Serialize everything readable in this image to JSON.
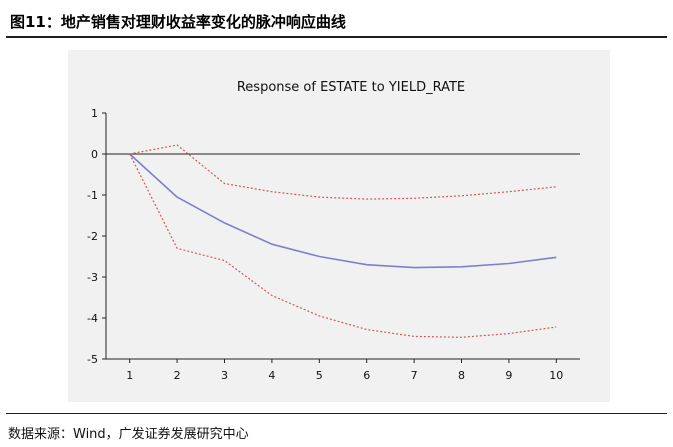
{
  "header": {
    "title": "图11：地产销售对理财收益率变化的脉冲响应曲线"
  },
  "footer": {
    "source": "数据来源：Wind，广发证券发展研究中心"
  },
  "colors": {
    "response_line": "#7f7fcf",
    "confidence_band": "#cf5a5a",
    "zero_line": "#222222",
    "axis": "#222222"
  },
  "chart_data": {
    "type": "line",
    "title": "Response of ESTATE to YIELD_RATE",
    "xlabel": "",
    "ylabel": "",
    "x": [
      1,
      2,
      3,
      4,
      5,
      6,
      7,
      8,
      9,
      10
    ],
    "xticks": [
      "1",
      "2",
      "3",
      "4",
      "5",
      "6",
      "7",
      "8",
      "9",
      "10"
    ],
    "yticks": [
      "1",
      "0",
      "-1",
      "-2",
      "-3",
      "-4",
      "-5"
    ],
    "ylim": [
      -5,
      1
    ],
    "xlim": [
      0.5,
      10.5
    ],
    "grid": false,
    "series": [
      {
        "style": "solid",
        "values": [
          0,
          -1.05,
          -1.68,
          -2.2,
          -2.5,
          -2.7,
          -2.77,
          -2.75,
          -2.67,
          -2.52
        ]
      },
      {
        "style": "dotted",
        "values": [
          0,
          0.22,
          -0.72,
          -0.92,
          -1.05,
          -1.1,
          -1.08,
          -1.02,
          -0.92,
          -0.8
        ]
      },
      {
        "style": "dotted",
        "values": [
          0,
          -2.3,
          -2.6,
          -3.45,
          -3.95,
          -4.28,
          -4.45,
          -4.47,
          -4.38,
          -4.22
        ]
      }
    ]
  }
}
